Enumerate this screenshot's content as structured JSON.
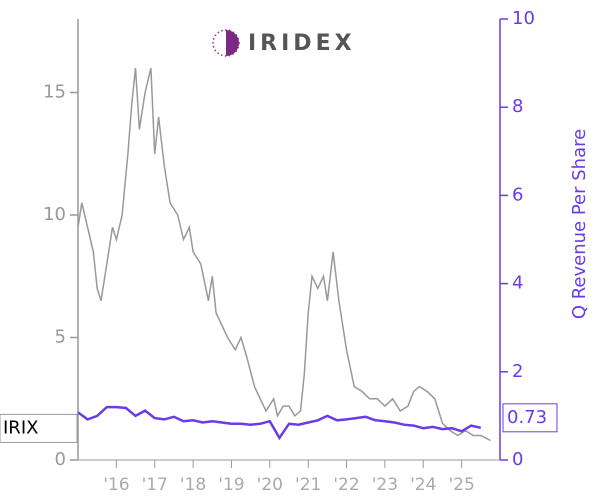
{
  "chart_data": {
    "type": "line",
    "logo": "IRIDEX",
    "y2_label": "Q Revenue Per Share",
    "xlim": [
      2015,
      2026
    ],
    "xticks": [
      {
        "value": 2016,
        "label": "'16"
      },
      {
        "value": 2017,
        "label": "'17"
      },
      {
        "value": 2018,
        "label": "'18"
      },
      {
        "value": 2019,
        "label": "'19"
      },
      {
        "value": 2020,
        "label": "'20"
      },
      {
        "value": 2021,
        "label": "'21"
      },
      {
        "value": 2022,
        "label": "'22"
      },
      {
        "value": 2023,
        "label": "'23"
      },
      {
        "value": 2024,
        "label": "'24"
      },
      {
        "value": 2025,
        "label": "'25"
      }
    ],
    "ylim": [
      0,
      18
    ],
    "yticks": [
      0,
      5,
      10,
      15
    ],
    "y2lim": [
      0,
      10
    ],
    "y2ticks": [
      0,
      2,
      4,
      6,
      8,
      10
    ],
    "series": [
      {
        "name": "IRIX",
        "color": "#999999",
        "x": [
          2015.0,
          2015.1,
          2015.25,
          2015.4,
          2015.5,
          2015.6,
          2015.75,
          2015.9,
          2016.0,
          2016.15,
          2016.3,
          2016.4,
          2016.5,
          2016.6,
          2016.75,
          2016.9,
          2017.0,
          2017.1,
          2017.25,
          2017.4,
          2017.6,
          2017.75,
          2017.9,
          2018.0,
          2018.2,
          2018.4,
          2018.5,
          2018.6,
          2018.75,
          2018.9,
          2019.1,
          2019.25,
          2019.4,
          2019.6,
          2019.75,
          2019.9,
          2020.1,
          2020.2,
          2020.35,
          2020.5,
          2020.65,
          2020.8,
          2020.9,
          2021.0,
          2021.1,
          2021.25,
          2021.4,
          2021.5,
          2021.65,
          2021.8,
          2022.0,
          2022.2,
          2022.4,
          2022.6,
          2022.8,
          2023.0,
          2023.2,
          2023.4,
          2023.6,
          2023.75,
          2023.9,
          2024.1,
          2024.3,
          2024.5,
          2024.7,
          2024.9,
          2025.1,
          2025.3,
          2025.5,
          2025.75
        ],
        "values": [
          9.5,
          10.5,
          9.5,
          8.5,
          7.0,
          6.5,
          8.0,
          9.5,
          9.0,
          10.0,
          12.5,
          14.5,
          16.0,
          13.5,
          15.0,
          16.0,
          12.5,
          14.0,
          12.0,
          10.5,
          10.0,
          9.0,
          9.5,
          8.5,
          8.0,
          6.5,
          7.5,
          6.0,
          5.5,
          5.0,
          4.5,
          5.0,
          4.2,
          3.0,
          2.5,
          2.0,
          2.5,
          1.8,
          2.2,
          2.2,
          1.8,
          2.0,
          3.5,
          6.0,
          7.5,
          7.0,
          7.5,
          6.5,
          8.5,
          6.5,
          4.5,
          3.0,
          2.8,
          2.5,
          2.5,
          2.2,
          2.5,
          2.0,
          2.2,
          2.8,
          3.0,
          2.8,
          2.5,
          1.5,
          1.2,
          1.0,
          1.2,
          1.0,
          1.0,
          0.8
        ]
      },
      {
        "axis": "y2",
        "color": "#6a3be8",
        "x": [
          2015.0,
          2015.25,
          2015.5,
          2015.75,
          2016.0,
          2016.25,
          2016.5,
          2016.75,
          2017.0,
          2017.25,
          2017.5,
          2017.75,
          2018.0,
          2018.25,
          2018.5,
          2018.75,
          2019.0,
          2019.25,
          2019.5,
          2019.75,
          2020.0,
          2020.25,
          2020.5,
          2020.75,
          2021.0,
          2021.25,
          2021.5,
          2021.75,
          2022.0,
          2022.25,
          2022.5,
          2022.75,
          2023.0,
          2023.25,
          2023.5,
          2023.75,
          2024.0,
          2024.25,
          2024.5,
          2024.75,
          2025.0,
          2025.25,
          2025.5
        ],
        "values": [
          1.08,
          0.92,
          1.0,
          1.2,
          1.2,
          1.18,
          1.0,
          1.12,
          0.95,
          0.92,
          0.98,
          0.88,
          0.9,
          0.85,
          0.88,
          0.85,
          0.82,
          0.82,
          0.8,
          0.82,
          0.88,
          0.5,
          0.82,
          0.8,
          0.85,
          0.9,
          1.0,
          0.9,
          0.92,
          0.95,
          0.98,
          0.9,
          0.88,
          0.85,
          0.8,
          0.78,
          0.72,
          0.75,
          0.7,
          0.72,
          0.65,
          0.78,
          0.73
        ]
      }
    ]
  }
}
